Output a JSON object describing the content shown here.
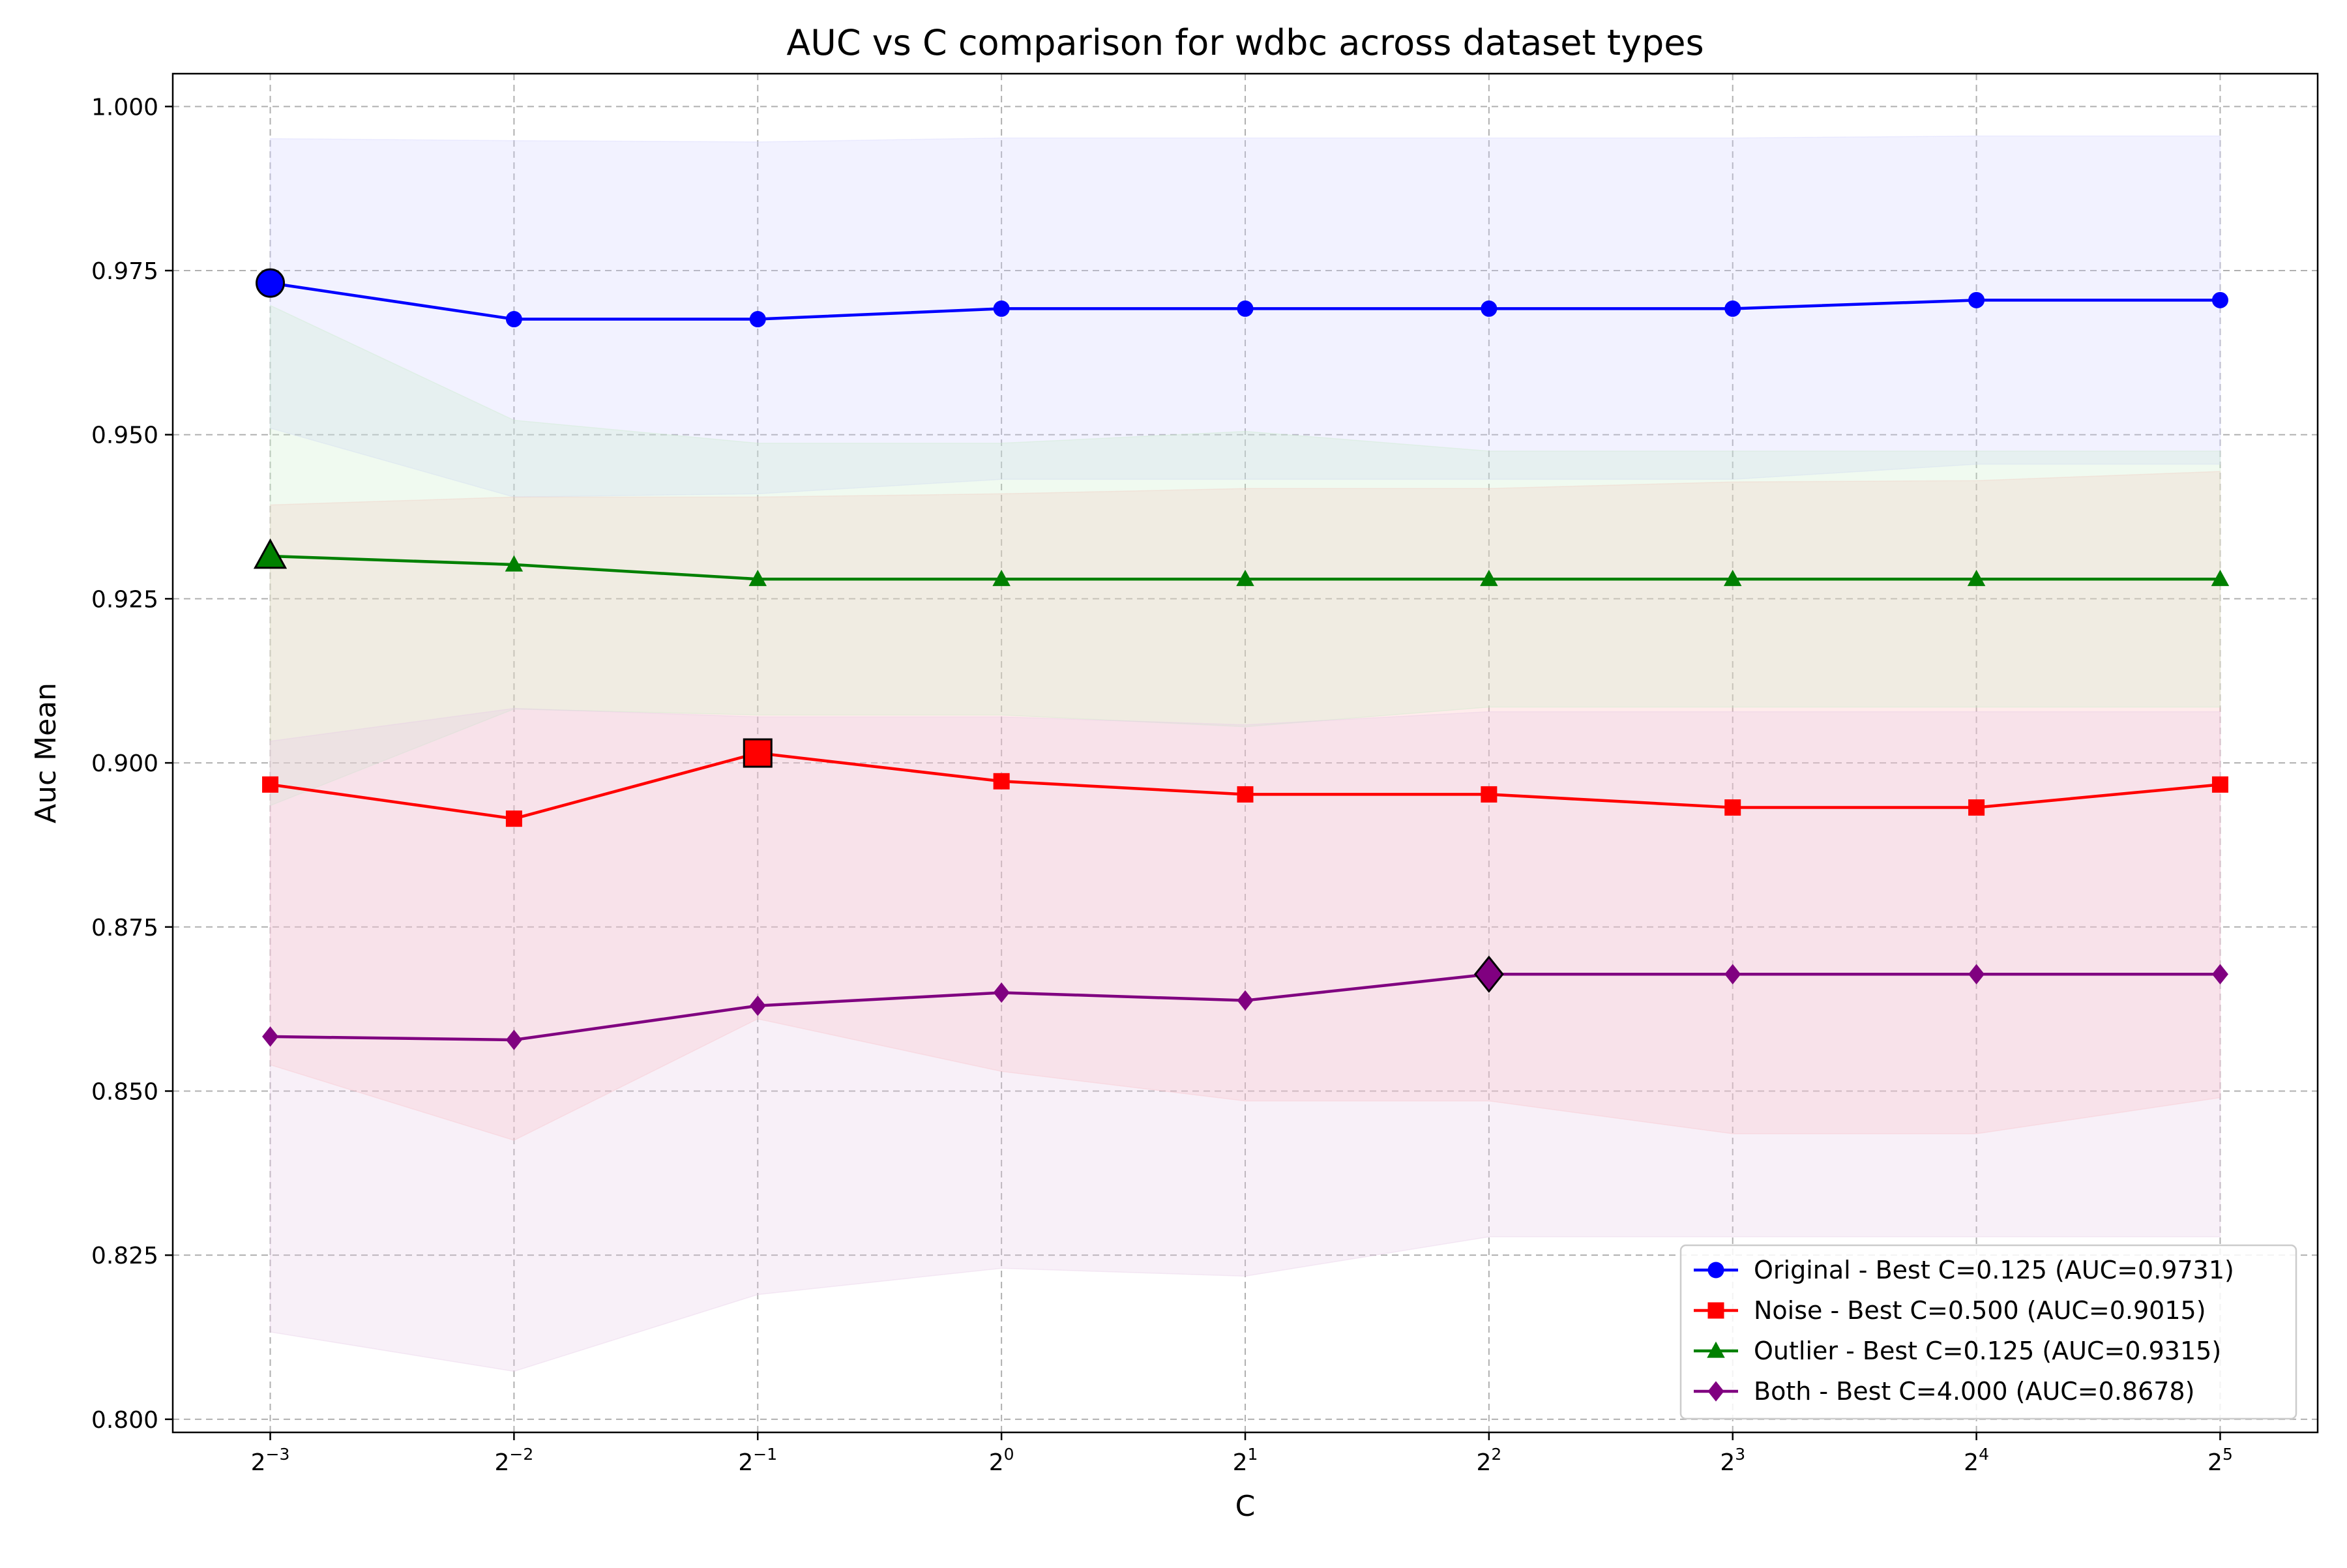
{
  "chart_data": {
    "type": "line",
    "title": "AUC vs C comparison for wdbc across dataset types",
    "xlabel": "C",
    "ylabel": "Auc Mean",
    "x_scale": "log2",
    "x": [
      0.125,
      0.25,
      0.5,
      1,
      2,
      4,
      8,
      16,
      32
    ],
    "x_tick_labels": [
      {
        "base": "2",
        "exp": "−3"
      },
      {
        "base": "2",
        "exp": "−2"
      },
      {
        "base": "2",
        "exp": "−1"
      },
      {
        "base": "2",
        "exp": "0"
      },
      {
        "base": "2",
        "exp": "1"
      },
      {
        "base": "2",
        "exp": "2"
      },
      {
        "base": "2",
        "exp": "3"
      },
      {
        "base": "2",
        "exp": "4"
      },
      {
        "base": "2",
        "exp": "5"
      }
    ],
    "ylim": [
      0.798,
      1.005
    ],
    "y_ticks": [
      0.8,
      0.825,
      0.85,
      0.875,
      0.9,
      0.925,
      0.95,
      0.975,
      1.0
    ],
    "y_tick_labels": [
      "0.800",
      "0.825",
      "0.850",
      "0.875",
      "0.900",
      "0.925",
      "0.950",
      "0.975",
      "1.000"
    ],
    "grid": true,
    "legend_position": "lower-right",
    "series": [
      {
        "name": "Original - Best C=0.125 (AUC=0.9731)",
        "color": "#0000ff",
        "marker": "circle",
        "values": [
          0.9731,
          0.9676,
          0.9676,
          0.9692,
          0.9692,
          0.9692,
          0.9692,
          0.9705,
          0.9705
        ],
        "lower": [
          0.951,
          0.9405,
          0.941,
          0.9432,
          0.9432,
          0.9432,
          0.9432,
          0.9455,
          0.9455
        ],
        "upper": [
          0.9951,
          0.9948,
          0.9946,
          0.9952,
          0.9952,
          0.9952,
          0.9952,
          0.9955,
          0.9955
        ],
        "band_color": "#d0d0ff",
        "best_index": 0
      },
      {
        "name": "Noise - Best C=0.500 (AUC=0.9015)",
        "color": "#ff0000",
        "marker": "square",
        "values": [
          0.8967,
          0.8915,
          0.9015,
          0.8972,
          0.8952,
          0.8952,
          0.8932,
          0.8932,
          0.8967
        ],
        "lower": [
          0.854,
          0.8425,
          0.861,
          0.853,
          0.8485,
          0.8485,
          0.8435,
          0.8435,
          0.849
        ],
        "upper": [
          0.9393,
          0.9405,
          0.9405,
          0.941,
          0.9418,
          0.9418,
          0.9428,
          0.943,
          0.9444
        ],
        "band_color": "#ffbcbc",
        "best_index": 2
      },
      {
        "name": "Outlier - Best C=0.125 (AUC=0.9315)",
        "color": "#008000",
        "marker": "triangle",
        "values": [
          0.9315,
          0.9302,
          0.928,
          0.928,
          0.928,
          0.928,
          0.928,
          0.928,
          0.928
        ],
        "lower": [
          0.8935,
          0.9082,
          0.9073,
          0.9073,
          0.9055,
          0.9085,
          0.9085,
          0.9085,
          0.9085
        ],
        "upper": [
          0.9697,
          0.9522,
          0.9487,
          0.9487,
          0.9505,
          0.9475,
          0.9475,
          0.9475,
          0.9475
        ],
        "band_color": "#c8ecc8",
        "best_index": 0
      },
      {
        "name": "Both - Best C=4.000 (AUC=0.8678)",
        "color": "#800080",
        "marker": "diamond",
        "values": [
          0.8583,
          0.8578,
          0.863,
          0.865,
          0.8638,
          0.8678,
          0.8678,
          0.8678,
          0.8678
        ],
        "lower": [
          0.8133,
          0.8073,
          0.819,
          0.823,
          0.8218,
          0.8278,
          0.8278,
          0.8278,
          0.8278
        ],
        "upper": [
          0.9033,
          0.9083,
          0.907,
          0.907,
          0.9058,
          0.9078,
          0.9078,
          0.9078,
          0.9078
        ],
        "band_color": "#e6c8e6",
        "best_index": 5
      }
    ]
  }
}
